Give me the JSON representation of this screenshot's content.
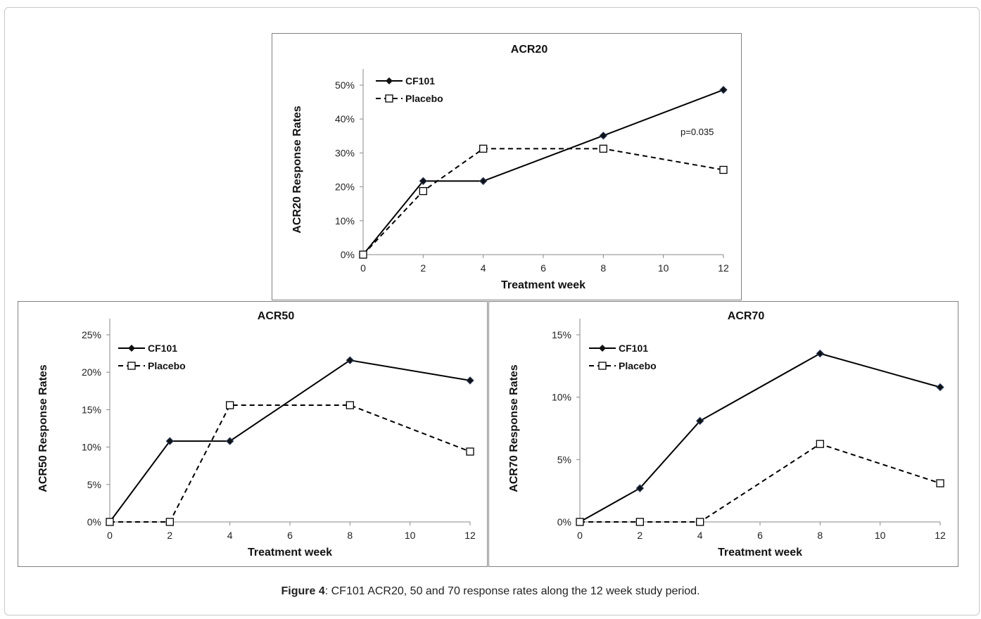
{
  "caption": {
    "label": "Figure 4",
    "text": ": CF101 ACR20, 50 and 70 response rates along the 12 week study period."
  },
  "chart_data": [
    {
      "type": "line",
      "title": "ACR20",
      "xlabel": "Treatment week",
      "ylabel": "ACR20 Response Rates",
      "x_ticks": [
        "0",
        "2",
        "4",
        "6",
        "8",
        "10",
        "12"
      ],
      "y_ticks": [
        "0%",
        "10%",
        "20%",
        "30%",
        "40%",
        "50%"
      ],
      "xlim": [
        0,
        12
      ],
      "ylim": [
        0,
        50
      ],
      "legend_position": "top-left",
      "annotation": "p=0.035",
      "series": [
        {
          "name": "CF101",
          "style": "solid",
          "marker": "diamond",
          "x": [
            0,
            2,
            4,
            8,
            12
          ],
          "values": [
            0,
            21.7,
            21.7,
            35.1,
            48.6
          ]
        },
        {
          "name": "Placebo",
          "style": "dashed",
          "marker": "square",
          "x": [
            0,
            2,
            4,
            8,
            12
          ],
          "values": [
            0,
            18.75,
            31.25,
            31.25,
            25
          ]
        }
      ]
    },
    {
      "type": "line",
      "title": "ACR50",
      "xlabel": "Treatment week",
      "ylabel": "ACR50 Response Rates",
      "x_ticks": [
        "0",
        "2",
        "4",
        "6",
        "8",
        "10",
        "12"
      ],
      "y_ticks": [
        "0%",
        "5%",
        "10%",
        "15%",
        "20%",
        "25%"
      ],
      "xlim": [
        0,
        12
      ],
      "ylim": [
        0,
        25
      ],
      "legend_position": "top-left",
      "series": [
        {
          "name": "CF101",
          "style": "solid",
          "marker": "diamond",
          "x": [
            0,
            2,
            4,
            8,
            12
          ],
          "values": [
            0,
            10.8,
            10.8,
            21.6,
            18.9
          ]
        },
        {
          "name": "Placebo",
          "style": "dashed",
          "marker": "square",
          "x": [
            0,
            2,
            4,
            8,
            12
          ],
          "values": [
            0,
            0,
            15.6,
            15.6,
            9.4
          ]
        }
      ]
    },
    {
      "type": "line",
      "title": "ACR70",
      "xlabel": "Treatment week",
      "ylabel": "ACR70 Response Rates",
      "x_ticks": [
        "0",
        "2",
        "4",
        "6",
        "8",
        "10",
        "12"
      ],
      "y_ticks": [
        "0%",
        "5%",
        "10%",
        "15%"
      ],
      "xlim": [
        0,
        12
      ],
      "ylim": [
        0,
        15
      ],
      "legend_position": "top-left",
      "series": [
        {
          "name": "CF101",
          "style": "solid",
          "marker": "diamond",
          "x": [
            0,
            2,
            4,
            8,
            12
          ],
          "values": [
            0,
            2.7,
            8.1,
            13.5,
            10.8
          ]
        },
        {
          "name": "Placebo",
          "style": "dashed",
          "marker": "square",
          "x": [
            0,
            2,
            4,
            8,
            12
          ],
          "values": [
            0,
            0,
            0,
            6.25,
            3.1
          ]
        }
      ]
    }
  ]
}
